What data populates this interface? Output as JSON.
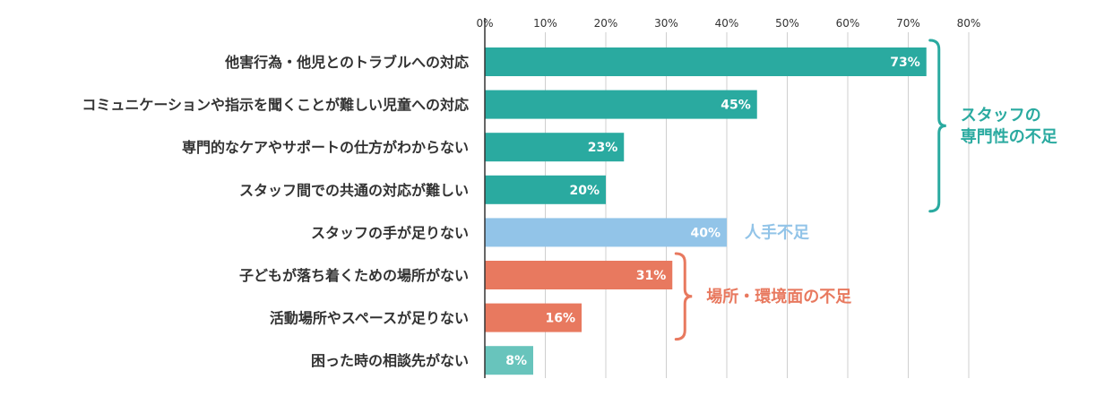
{
  "chart_data": {
    "type": "bar",
    "orientation": "horizontal",
    "categories": [
      "他害行為・他児とのトラブルへの対応",
      "コミュニケーションや指示を聞くことが難しい児童への対応",
      "専門的なケアやサポートの仕方がわからない",
      "スタッフ間での共通の対応が難しい",
      "スタッフの手が足りない",
      "子どもが落ち着くための場所がない",
      "活動場所やスペースが足りない",
      "困った時の相談先がない"
    ],
    "values": [
      73,
      45,
      23,
      20,
      40,
      31,
      16,
      8
    ],
    "data_labels": [
      "73%",
      "45%",
      "23%",
      "20%",
      "40%",
      "31%",
      "16%",
      "8%"
    ],
    "bar_colors": [
      "#2aaaa0",
      "#2aaaa0",
      "#2aaaa0",
      "#2aaaa0",
      "#92c4e8",
      "#e8795f",
      "#e8795f",
      "#68c4bc"
    ],
    "xlim": [
      0,
      80
    ],
    "ticks": [
      0,
      10,
      20,
      30,
      40,
      50,
      60,
      70,
      80
    ],
    "tick_labels": [
      "0%",
      "10%",
      "20%",
      "30%",
      "40%",
      "50%",
      "60%",
      "70%",
      "80%"
    ],
    "grid": true,
    "groups": [
      {
        "lines": [
          "スタッフの",
          "専門性の不足"
        ],
        "from": 0,
        "to": 3,
        "color": "#2aaaa0",
        "bracket": true
      },
      {
        "lines": [
          "人手不足"
        ],
        "from": 4,
        "to": 4,
        "color": "#92c4e8",
        "bracket": false
      },
      {
        "lines": [
          "場所・環境面の不足"
        ],
        "from": 5,
        "to": 6,
        "color": "#e8795f",
        "bracket": true
      }
    ]
  }
}
